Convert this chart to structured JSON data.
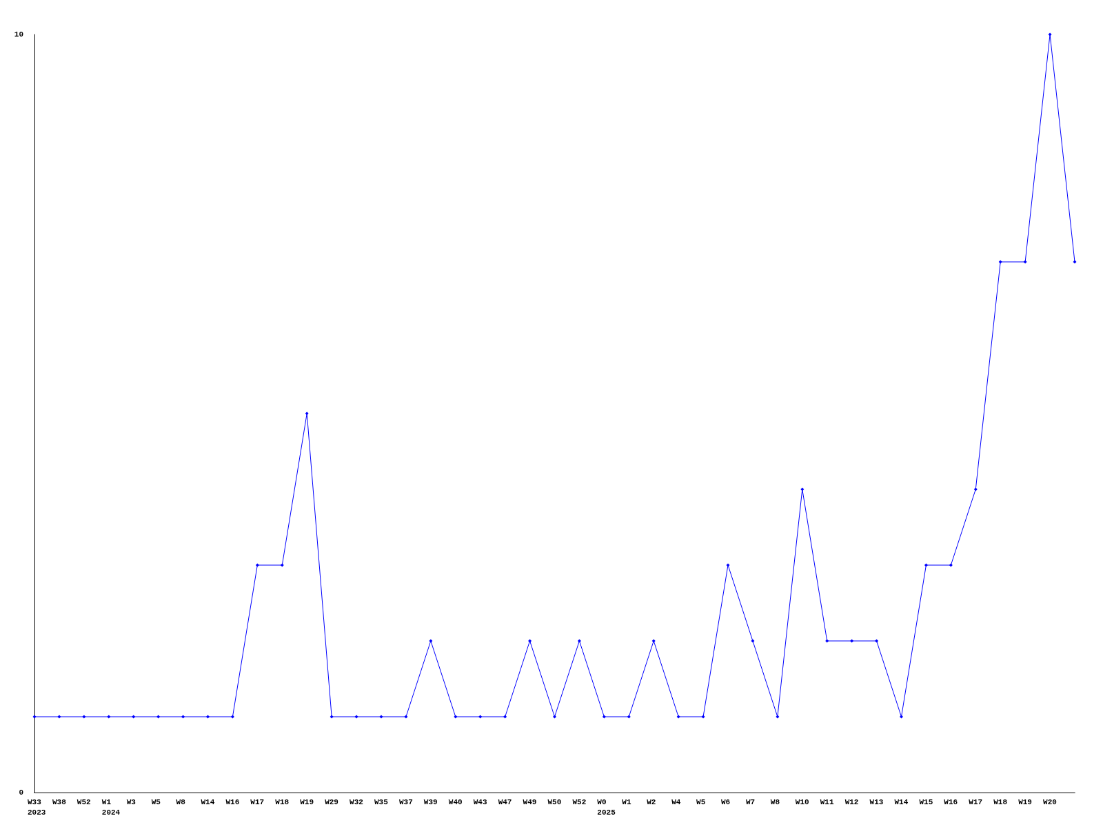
{
  "chart_data": {
    "type": "line",
    "categories": [
      "W33\n2023",
      "W38",
      "W52",
      "W1\n2024",
      "W3",
      "W5",
      "W8",
      "W14",
      "W16",
      "W17",
      "W18",
      "W19",
      "W29",
      "W32",
      "W35",
      "W37",
      "W39",
      "W40",
      "W43",
      "W47",
      "W49",
      "W50",
      "W52",
      "W0\n2025",
      "W1",
      "W2",
      "W4",
      "W5",
      "W6",
      "W7",
      "W8",
      "W10",
      "W11",
      "W12",
      "W13",
      "W14",
      "W15",
      "W16",
      "W17",
      "W18",
      "W19",
      "W20",
      null
    ],
    "series": [
      {
        "color": "#0000ff",
        "values": [
          1,
          1,
          1,
          1,
          1,
          1,
          1,
          1,
          1,
          3,
          3,
          5,
          1,
          1,
          1,
          1,
          2,
          1,
          1,
          1,
          2,
          1,
          2,
          1,
          1,
          2,
          1,
          1,
          3,
          2,
          1,
          4,
          2,
          2,
          2,
          1,
          3,
          3,
          4,
          7,
          7,
          10,
          7
        ]
      }
    ],
    "ylim": [
      0,
      10
    ],
    "yticks": [
      0,
      10
    ],
    "marker": "diamond",
    "line_style": "solid"
  }
}
